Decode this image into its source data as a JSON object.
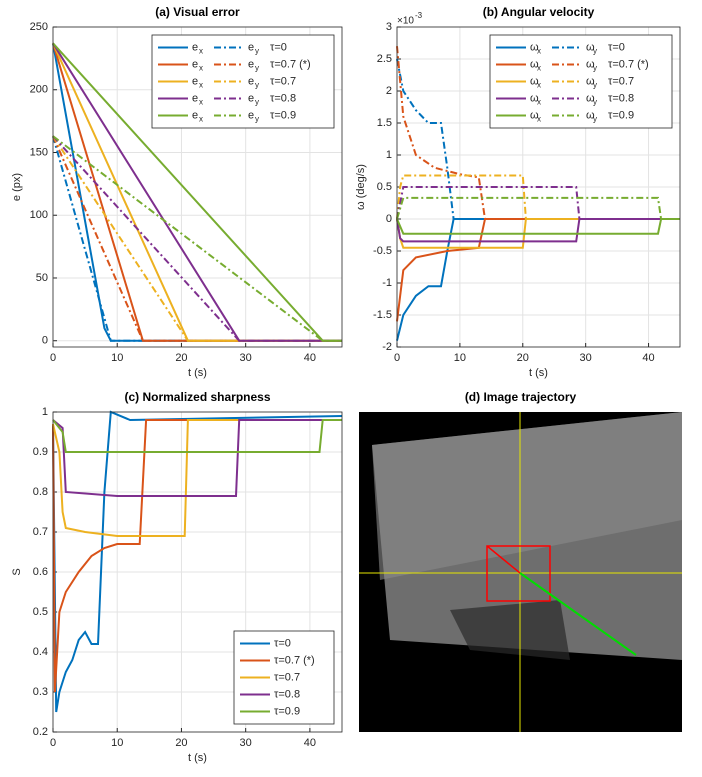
{
  "chart_data": [
    {
      "type": "line",
      "title": "(a) Visual error",
      "x_label": "t (s)",
      "y_label": "e (px)",
      "xlim": [
        0,
        45
      ],
      "xticks": [
        0,
        10,
        20,
        30,
        40
      ],
      "ylim": [
        -5,
        250
      ],
      "yticks": [
        0,
        50,
        100,
        150,
        200,
        250
      ],
      "grid": true,
      "legend_position": "top-right",
      "component_symbols": [
        {
          "symbol": "e",
          "subscript": "x",
          "style": "solid"
        },
        {
          "symbol": "e",
          "subscript": "y",
          "style": "dashdot"
        }
      ],
      "series": [
        {
          "name": "τ=0",
          "color": "#0072BD",
          "components": [
            {
              "x": [
                0,
                8,
                9,
                45
              ],
              "values": [
                237,
                10,
                0,
                0
              ]
            },
            {
              "x": [
                0,
                9,
                45
              ],
              "values": [
                163,
                0,
                0
              ]
            }
          ]
        },
        {
          "name": "τ=0.7 (*)",
          "color": "#D95319",
          "components": [
            {
              "x": [
                0,
                14,
                45
              ],
              "values": [
                237,
                0,
                0
              ]
            },
            {
              "x": [
                0,
                14,
                45
              ],
              "values": [
                163,
                0,
                0
              ]
            }
          ]
        },
        {
          "name": "τ=0.7",
          "color": "#EDB120",
          "components": [
            {
              "x": [
                0,
                21,
                45
              ],
              "values": [
                237,
                0,
                0
              ]
            },
            {
              "x": [
                0,
                21,
                45
              ],
              "values": [
                163,
                0,
                0
              ]
            }
          ]
        },
        {
          "name": "τ=0.8",
          "color": "#7E2F8E",
          "components": [
            {
              "x": [
                0,
                29,
                45
              ],
              "values": [
                237,
                0,
                0
              ]
            },
            {
              "x": [
                0,
                29,
                45
              ],
              "values": [
                163,
                0,
                0
              ]
            }
          ]
        },
        {
          "name": "τ=0.9",
          "color": "#77AC30",
          "components": [
            {
              "x": [
                0,
                42,
                45
              ],
              "values": [
                237,
                0,
                0
              ]
            },
            {
              "x": [
                0,
                42,
                45
              ],
              "values": [
                163,
                0,
                0
              ]
            }
          ]
        }
      ]
    },
    {
      "type": "line",
      "title": "(b) Angular velocity",
      "x_label": "t (s)",
      "y_label": "ω (deg/s)",
      "axis_multiplier": {
        "base": "×10",
        "exponent": "-3"
      },
      "xlim": [
        0,
        45
      ],
      "xticks": [
        0,
        10,
        20,
        30,
        40
      ],
      "ylim": [
        -2,
        3
      ],
      "yticks": [
        -2,
        -1.5,
        -1,
        -0.5,
        0,
        0.5,
        1,
        1.5,
        2,
        2.5,
        3
      ],
      "grid": true,
      "legend_position": "top-right",
      "component_symbols": [
        {
          "symbol": "ω",
          "subscript": "x",
          "style": "solid"
        },
        {
          "symbol": "ω",
          "subscript": "y",
          "style": "dashdot"
        }
      ],
      "series": [
        {
          "name": "τ=0",
          "color": "#0072BD",
          "components": [
            {
              "x": [
                0,
                1,
                3,
                5,
                7,
                8,
                9,
                45
              ],
              "values": [
                -1.9,
                -1.5,
                -1.2,
                -1.05,
                -1.05,
                -0.5,
                0,
                0
              ]
            },
            {
              "x": [
                0,
                1,
                3,
                5,
                7,
                8,
                9,
                45
              ],
              "values": [
                2.5,
                2.0,
                1.7,
                1.5,
                1.5,
                0.8,
                0,
                0
              ]
            }
          ]
        },
        {
          "name": "τ=0.7 (*)",
          "color": "#D95319",
          "components": [
            {
              "x": [
                0,
                1,
                3,
                8,
                13,
                14,
                45
              ],
              "values": [
                -1.6,
                -0.8,
                -0.6,
                -0.5,
                -0.45,
                0,
                0
              ]
            },
            {
              "x": [
                0,
                1,
                3,
                6,
                10,
                13,
                14,
                45
              ],
              "values": [
                2.7,
                1.6,
                1.0,
                0.8,
                0.7,
                0.65,
                0,
                0
              ]
            }
          ]
        },
        {
          "name": "τ=0.7",
          "color": "#EDB120",
          "components": [
            {
              "x": [
                0,
                0.5,
                1,
                20,
                20.5,
                45
              ],
              "values": [
                0,
                -0.3,
                -0.45,
                -0.45,
                0,
                0
              ]
            },
            {
              "x": [
                0,
                0.5,
                1,
                20,
                20.5,
                45
              ],
              "values": [
                0,
                0.5,
                0.68,
                0.68,
                0,
                0
              ]
            }
          ]
        },
        {
          "name": "τ=0.8",
          "color": "#7E2F8E",
          "components": [
            {
              "x": [
                0,
                0.5,
                1,
                28.5,
                29,
                45
              ],
              "values": [
                0,
                -0.3,
                -0.35,
                -0.35,
                0,
                0
              ]
            },
            {
              "x": [
                0,
                1,
                28.5,
                29,
                45
              ],
              "values": [
                0,
                0.5,
                0.5,
                0,
                0
              ]
            }
          ]
        },
        {
          "name": "τ=0.9",
          "color": "#77AC30",
          "components": [
            {
              "x": [
                0,
                1,
                41.5,
                42,
                45
              ],
              "values": [
                0,
                -0.23,
                -0.23,
                0,
                0
              ]
            },
            {
              "x": [
                0,
                1,
                41.5,
                42,
                45
              ],
              "values": [
                0,
                0.33,
                0.33,
                0,
                0
              ]
            }
          ]
        }
      ]
    },
    {
      "type": "line",
      "title": "(c) Normalized sharpness",
      "x_label": "t (s)",
      "y_label": "S",
      "xlim": [
        0,
        45
      ],
      "xticks": [
        0,
        10,
        20,
        30,
        40
      ],
      "ylim": [
        0.2,
        1
      ],
      "yticks": [
        0.2,
        0.3,
        0.4,
        0.5,
        0.6,
        0.7,
        0.8,
        0.9,
        1
      ],
      "grid": true,
      "legend_position": "bottom-right",
      "series": [
        {
          "name": "τ=0",
          "color": "#0072BD",
          "x": [
            0,
            0.5,
            1,
            2,
            3,
            4,
            5,
            6,
            7,
            8,
            9,
            12,
            45
          ],
          "values": [
            0.97,
            0.25,
            0.3,
            0.35,
            0.38,
            0.43,
            0.45,
            0.42,
            0.42,
            0.8,
            1,
            0.98,
            0.99
          ]
        },
        {
          "name": "τ=0.7 (*)",
          "color": "#D95319",
          "x": [
            0,
            0.3,
            1,
            2,
            4,
            6,
            8,
            10,
            13.5,
            14.5,
            45
          ],
          "values": [
            0.97,
            0.3,
            0.5,
            0.55,
            0.6,
            0.64,
            0.66,
            0.67,
            0.67,
            0.98,
            0.98
          ]
        },
        {
          "name": "τ=0.7",
          "color": "#EDB120",
          "x": [
            0,
            1,
            1.5,
            2,
            5,
            10,
            20.5,
            21,
            45
          ],
          "values": [
            0.97,
            0.9,
            0.75,
            0.71,
            0.7,
            0.69,
            0.69,
            0.98,
            0.98
          ]
        },
        {
          "name": "τ=0.8",
          "color": "#7E2F8E",
          "x": [
            0,
            1.5,
            2,
            10,
            28.5,
            29,
            45
          ],
          "values": [
            0.98,
            0.96,
            0.8,
            0.79,
            0.79,
            0.98,
            0.98
          ]
        },
        {
          "name": "τ=0.9",
          "color": "#77AC30",
          "x": [
            0,
            1.5,
            2,
            20,
            41.5,
            42,
            45
          ],
          "values": [
            0.98,
            0.95,
            0.9,
            0.9,
            0.9,
            0.98,
            0.98
          ]
        }
      ]
    },
    {
      "type": "image",
      "title": "(d) Image trajectory"
    }
  ]
}
